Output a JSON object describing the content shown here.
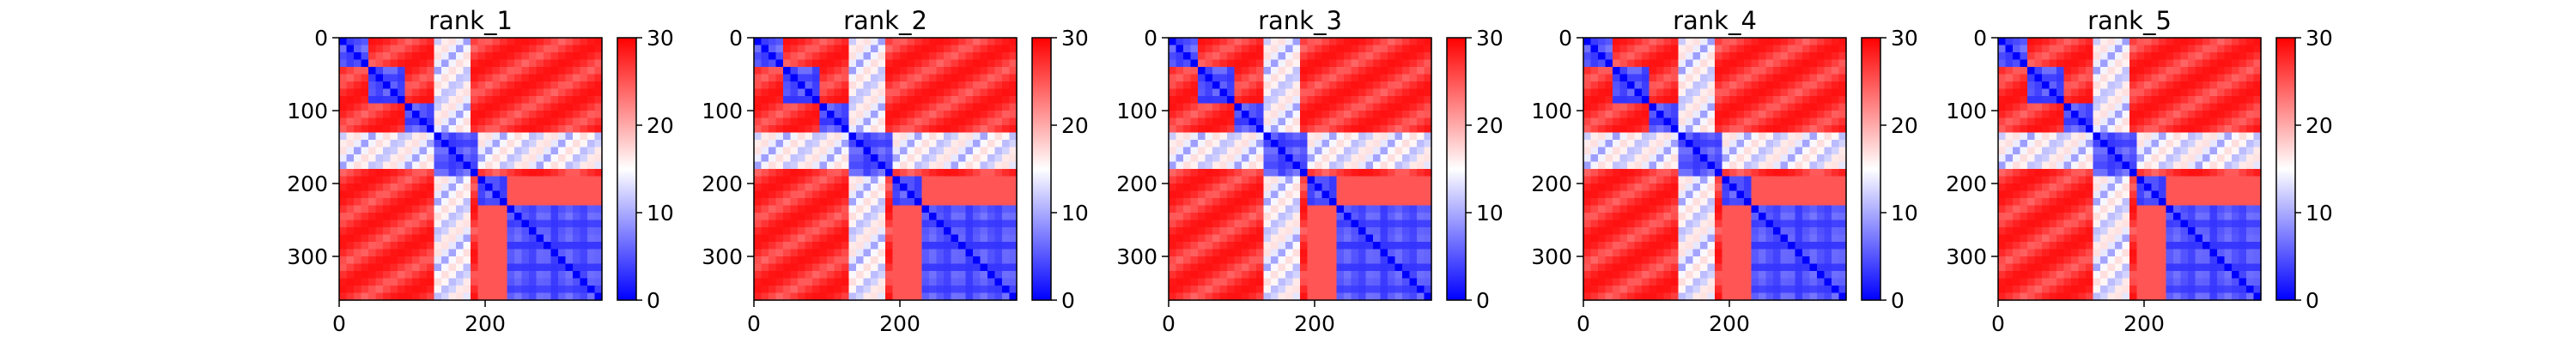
{
  "colors": {
    "low": "#0000ff",
    "mid": "#ffffff",
    "high": "#ff0000"
  },
  "chart_data": [
    {
      "type": "heatmap",
      "title": "rank_1",
      "cmap": "bwr",
      "grid": false,
      "yticks": [
        "0",
        "100",
        "200",
        "300"
      ],
      "xticks": [
        "0",
        "200"
      ],
      "colorbar_ticks": [
        "0",
        "10",
        "20",
        "30"
      ],
      "vmin": 0,
      "vmax": 30,
      "xlim": [
        0,
        360
      ],
      "ylim": [
        360,
        0
      ]
    },
    {
      "type": "heatmap",
      "title": "rank_2",
      "cmap": "bwr",
      "grid": false,
      "yticks": [
        "0",
        "100",
        "200",
        "300"
      ],
      "xticks": [
        "0",
        "200"
      ],
      "colorbar_ticks": [
        "0",
        "10",
        "20",
        "30"
      ],
      "vmin": 0,
      "vmax": 30,
      "xlim": [
        0,
        360
      ],
      "ylim": [
        360,
        0
      ]
    },
    {
      "type": "heatmap",
      "title": "rank_3",
      "cmap": "bwr",
      "grid": false,
      "yticks": [
        "0",
        "100",
        "200",
        "300"
      ],
      "xticks": [
        "0",
        "200"
      ],
      "colorbar_ticks": [
        "0",
        "10",
        "20",
        "30"
      ],
      "vmin": 0,
      "vmax": 30,
      "xlim": [
        0,
        360
      ],
      "ylim": [
        360,
        0
      ]
    },
    {
      "type": "heatmap",
      "title": "rank_4",
      "cmap": "bwr",
      "grid": false,
      "yticks": [
        "0",
        "100",
        "200",
        "300"
      ],
      "xticks": [
        "0",
        "200"
      ],
      "colorbar_ticks": [
        "0",
        "10",
        "20",
        "30"
      ],
      "vmin": 0,
      "vmax": 30,
      "xlim": [
        0,
        360
      ],
      "ylim": [
        360,
        0
      ]
    },
    {
      "type": "heatmap",
      "title": "rank_5",
      "cmap": "bwr",
      "grid": false,
      "yticks": [
        "0",
        "100",
        "200",
        "300"
      ],
      "xticks": [
        "0",
        "200"
      ],
      "colorbar_ticks": [
        "0",
        "10",
        "20",
        "30"
      ],
      "vmin": 0,
      "vmax": 30,
      "xlim": [
        0,
        360
      ],
      "ylim": [
        360,
        0
      ]
    }
  ]
}
